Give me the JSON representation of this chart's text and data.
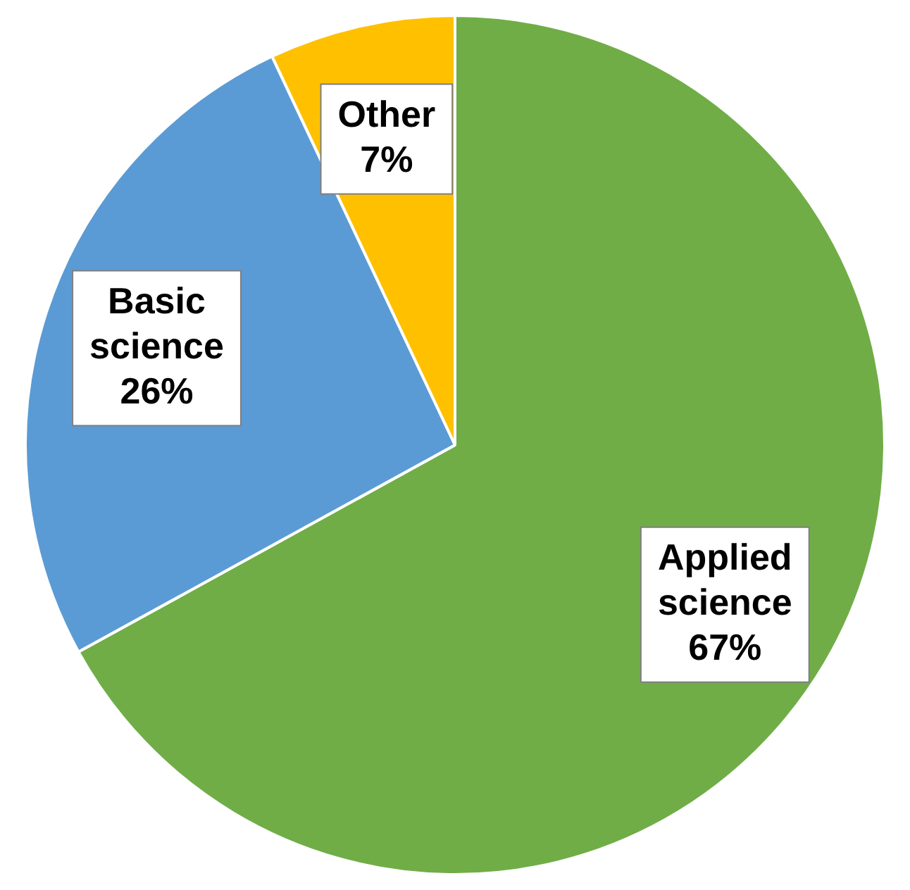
{
  "chart_data": {
    "type": "pie",
    "categories": [
      "Applied science",
      "Basic science",
      "Other"
    ],
    "values": [
      67,
      26,
      7
    ],
    "colors": [
      "#70ad47",
      "#5b9bd5",
      "#ffc000"
    ],
    "value_labels": [
      "67%",
      "26%",
      "7%"
    ],
    "legend": false
  }
}
